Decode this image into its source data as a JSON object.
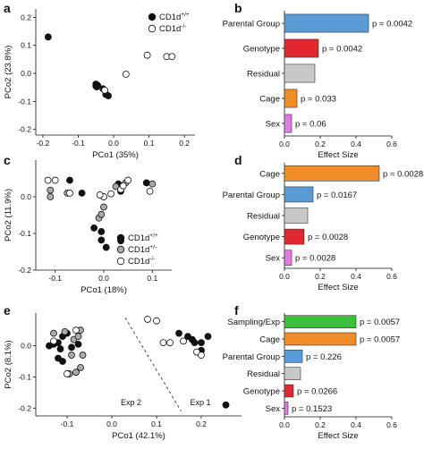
{
  "chart_data": [
    {
      "type": "scatter",
      "panel_label": "a",
      "xlabel": "PCo1 (35%)",
      "ylabel": "PCo2 (23.8%)",
      "xlim": [
        -0.22,
        0.23
      ],
      "ylim": [
        -0.22,
        0.23
      ],
      "xticks": [
        -0.2,
        -0.1,
        0.0,
        0.1,
        0.2
      ],
      "xtick_labels": [
        "-0.2",
        "-0.1",
        "0.0",
        "0.1",
        "0.2"
      ],
      "yticks": [
        -0.2,
        -0.1,
        0.0,
        0.1,
        0.2
      ],
      "ytick_labels": [
        "-0.2",
        "-0.1",
        "0.0",
        "0.1",
        "0.2"
      ],
      "legend": [
        {
          "name": "CD1d",
          "sup": "+/+",
          "color": "#111111"
        },
        {
          "name": "CD1d",
          "sup": "-/-",
          "color": "#ffffff"
        }
      ],
      "series": [
        {
          "name": "CD1d+/+",
          "color": "#111111",
          "points": [
            [
              -0.185,
              0.13
            ],
            [
              -0.05,
              -0.038
            ],
            [
              -0.045,
              -0.043
            ],
            [
              -0.048,
              -0.048
            ],
            [
              -0.03,
              -0.055
            ],
            [
              -0.022,
              -0.075
            ],
            [
              -0.015,
              -0.08
            ],
            [
              -0.05,
              -0.045
            ]
          ]
        },
        {
          "name": "CD1d-/-",
          "color": "#ffffff",
          "points": [
            [
              -0.025,
              -0.06
            ],
            [
              0.035,
              -0.003
            ],
            [
              0.095,
              0.065
            ],
            [
              0.15,
              0.06
            ],
            [
              0.165,
              0.06
            ]
          ]
        }
      ]
    },
    {
      "type": "bar",
      "panel_label": "b",
      "orientation": "horizontal",
      "xlabel": "Effect Size",
      "xlim": [
        0,
        0.6
      ],
      "xticks": [
        0.0,
        0.2,
        0.4,
        0.6
      ],
      "xtick_labels": [
        "0.0",
        "0.2",
        "0.4",
        "0.6"
      ],
      "categories": [
        "Parental Group",
        "Genotype",
        "Residual",
        "Cage",
        "Sex"
      ],
      "values": [
        0.47,
        0.19,
        0.17,
        0.07,
        0.04
      ],
      "colors": [
        "#5b9bd5",
        "#e0282e",
        "#c8c8c8",
        "#f28c28",
        "#e07be0"
      ],
      "data_labels": [
        "p = 0.0042",
        "p = 0.0042",
        "",
        "p = 0.033",
        "p = 0.06"
      ]
    },
    {
      "type": "scatter",
      "panel_label": "c",
      "xlabel": "PCo1 (18%)",
      "ylabel": "PCo2 (11.9%)",
      "xlim": [
        -0.14,
        0.14
      ],
      "ylim": [
        -0.2,
        0.1
      ],
      "xticks": [
        -0.1,
        0.0,
        0.1
      ],
      "xtick_labels": [
        "-0.1",
        "0.0",
        "0.1"
      ],
      "yticks": [
        -0.2,
        -0.1,
        0.0
      ],
      "ytick_labels": [
        "-0.2",
        "-0.1",
        "0.0"
      ],
      "legend": [
        {
          "name": "CD1d",
          "sup": "+/+",
          "color": "#111111"
        },
        {
          "name": "CD1d",
          "sup": "+/-",
          "color": "#aaaaaa"
        },
        {
          "name": "CD1d",
          "sup": "-/-",
          "color": "#ffffff"
        }
      ],
      "series": [
        {
          "name": "CD1d+/+",
          "color": "#111111",
          "points": [
            [
              -0.07,
              0.045
            ],
            [
              -0.045,
              0.01
            ],
            [
              -0.02,
              -0.085
            ],
            [
              -0.005,
              -0.095
            ],
            [
              -0.005,
              -0.118
            ],
            [
              0.005,
              -0.138
            ],
            [
              0.035,
              -0.12
            ],
            [
              0.035,
              0.015
            ],
            [
              0.088,
              0.038
            ],
            [
              0.03,
              0.035
            ]
          ]
        },
        {
          "name": "CD1d+/-",
          "color": "#aaaaaa",
          "points": [
            [
              -0.11,
              0.018
            ],
            [
              -0.11,
              0.0
            ],
            [
              -0.01,
              -0.058
            ],
            [
              -0.005,
              -0.048
            ],
            [
              0.0,
              -0.028
            ],
            [
              0.0,
              0.0
            ],
            [
              0.025,
              0.028
            ],
            [
              0.045,
              0.038
            ],
            [
              0.1,
              0.035
            ],
            [
              -0.075,
              0.01
            ]
          ]
        },
        {
          "name": "CD1d-/-",
          "color": "#ffffff",
          "points": [
            [
              -0.115,
              0.045
            ],
            [
              -0.1,
              0.045
            ],
            [
              -0.07,
              0.01
            ],
            [
              0.0,
              0.0
            ],
            [
              0.015,
              0.008
            ],
            [
              0.035,
              0.02
            ],
            [
              0.04,
              0.03
            ],
            [
              0.05,
              0.045
            ],
            [
              0.095,
              0.015
            ],
            [
              -0.008,
              0.005
            ]
          ]
        }
      ]
    },
    {
      "type": "bar",
      "panel_label": "d",
      "orientation": "horizontal",
      "xlabel": "Effect Size",
      "xlim": [
        0,
        0.6
      ],
      "xticks": [
        0.0,
        0.2,
        0.4,
        0.6
      ],
      "xtick_labels": [
        "0.0",
        "0.2",
        "0.4",
        "0.6"
      ],
      "categories": [
        "Cage",
        "Parental Group",
        "Residual",
        "Genotype",
        "Sex"
      ],
      "values": [
        0.53,
        0.16,
        0.13,
        0.11,
        0.04
      ],
      "colors": [
        "#f28c28",
        "#5b9bd5",
        "#c8c8c8",
        "#e0282e",
        "#e07be0"
      ],
      "data_labels": [
        "p = 0.0028",
        "p = 0.0167",
        "",
        "p = 0.0028",
        "p = 0.0028"
      ]
    },
    {
      "type": "scatter",
      "panel_label": "e",
      "xlabel": "PCo1 (42.1%)",
      "ylabel": "PCo2 (8.1%)",
      "xlim": [
        -0.17,
        0.29
      ],
      "ylim": [
        -0.225,
        0.105
      ],
      "xticks": [
        -0.1,
        0.0,
        0.1,
        0.2
      ],
      "xtick_labels": [
        "-0.1",
        "0.0",
        "0.1",
        "0.2"
      ],
      "yticks": [
        -0.2,
        -0.1,
        0.0
      ],
      "ytick_labels": [
        "-0.2",
        "-0.1",
        "0.0"
      ],
      "annotations": [
        "Exp 2",
        "Exp 1"
      ],
      "series": [
        {
          "name": "CD1d+/+",
          "color": "#111111",
          "points": [
            [
              -0.14,
              0.0
            ],
            [
              -0.13,
              0.005
            ],
            [
              -0.12,
              0.01
            ],
            [
              -0.115,
              -0.01
            ],
            [
              -0.11,
              0.03
            ],
            [
              -0.1,
              0.04
            ],
            [
              -0.09,
              -0.005
            ],
            [
              -0.12,
              -0.04
            ],
            [
              -0.11,
              -0.05
            ],
            [
              -0.075,
              0.005
            ],
            [
              0.15,
              0.04
            ],
            [
              0.17,
              0.03
            ],
            [
              0.18,
              0.02
            ],
            [
              0.185,
              0.01
            ],
            [
              0.2,
              0.01
            ],
            [
              0.215,
              0.03
            ],
            [
              0.2,
              -0.015
            ],
            [
              0.255,
              -0.19
            ]
          ]
        },
        {
          "name": "CD1d+/-",
          "color": "#aaaaaa",
          "points": [
            [
              -0.13,
              0.04
            ],
            [
              -0.105,
              0.045
            ],
            [
              -0.085,
              0.02
            ],
            [
              -0.075,
              0.03
            ],
            [
              -0.09,
              -0.03
            ],
            [
              -0.095,
              -0.09
            ],
            [
              -0.07,
              -0.07
            ],
            [
              -0.08,
              -0.085
            ],
            [
              -0.07,
              0.05
            ],
            [
              -0.065,
              -0.03
            ]
          ]
        },
        {
          "name": "CD1d-/-",
          "color": "#ffffff",
          "points": [
            [
              -0.13,
              0.015
            ],
            [
              -0.08,
              0.05
            ],
            [
              -0.1,
              -0.09
            ],
            [
              0.08,
              0.085
            ],
            [
              0.1,
              0.08
            ],
            [
              0.115,
              0.01
            ],
            [
              0.13,
              0.01
            ],
            [
              0.16,
              0.015
            ],
            [
              0.19,
              -0.02
            ],
            [
              0.2,
              -0.03
            ]
          ]
        }
      ]
    },
    {
      "type": "bar",
      "panel_label": "f",
      "orientation": "horizontal",
      "xlabel": "Effect Size",
      "xlim": [
        0,
        0.6
      ],
      "xticks": [
        0.0,
        0.2,
        0.4,
        0.6
      ],
      "xtick_labels": [
        "0.0",
        "0.2",
        "0.4",
        "0.6"
      ],
      "categories": [
        "Sampling/Exp",
        "Cage",
        "Parental Group",
        "Residual",
        "Genotype",
        "Sex"
      ],
      "values": [
        0.4,
        0.4,
        0.1,
        0.09,
        0.05,
        0.02
      ],
      "colors": [
        "#3cbf3c",
        "#f28c28",
        "#5b9bd5",
        "#c8c8c8",
        "#e0282e",
        "#e07be0"
      ],
      "data_labels": [
        "p = 0.0057",
        "p = 0.0057",
        "p = 0.226",
        "",
        "p = 0.0266",
        "p = 0.1523"
      ]
    }
  ]
}
